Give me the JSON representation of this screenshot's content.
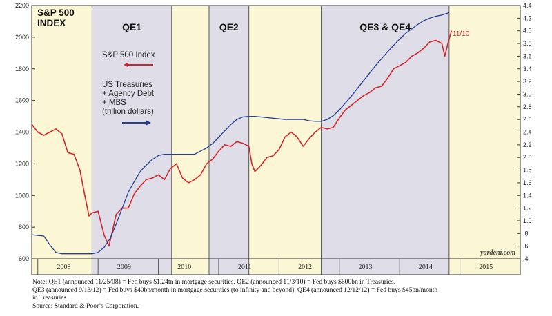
{
  "chart_data": {
    "type": "line",
    "title": "S&P 500\nINDEX",
    "periods": [
      {
        "name": "",
        "start": 2007.9,
        "end": 2008.9,
        "color": "#fbf7d4"
      },
      {
        "name": "QE1",
        "start": 2008.9,
        "end": 2010.22,
        "color": "#dfdee8"
      },
      {
        "name": "",
        "start": 2010.22,
        "end": 2010.84,
        "color": "#fbf7d4"
      },
      {
        "name": "QE2",
        "start": 2010.84,
        "end": 2011.5,
        "color": "#dfdee8"
      },
      {
        "name": "",
        "start": 2011.5,
        "end": 2012.7,
        "color": "#fbf7d4"
      },
      {
        "name": "QE3 & QE4",
        "start": 2012.7,
        "end": 2014.82,
        "color": "#dfdee8"
      },
      {
        "name": "",
        "start": 2014.82,
        "end": 2016.0,
        "color": "#fbf7d4"
      }
    ],
    "x_years": [
      "2008",
      "2009",
      "2010",
      "2011",
      "2012",
      "2013",
      "2014",
      "2015"
    ],
    "xlim": [
      2007.9,
      2016.0
    ],
    "ylim_left": [
      600,
      2200
    ],
    "yticks_left": [
      "600",
      "800",
      "1000",
      "1200",
      "1400",
      "1600",
      "1800",
      "2000",
      "2200"
    ],
    "ylim_right": [
      0.4,
      4.4
    ],
    "yticks_right": [
      ".4",
      ".6",
      ".8",
      "1.0",
      "1.2",
      "1.4",
      "1.6",
      "1.8",
      "2.0",
      "2.2",
      "2.4",
      "2.6",
      "2.8",
      "3.0",
      "3.2",
      "3.4",
      "3.6",
      "3.8",
      "4.0",
      "4.2",
      "4.4"
    ],
    "series": [
      {
        "name": "S&P 500 Index",
        "axis": "left",
        "color": "#d0262b",
        "x": [
          2007.9,
          2008.0,
          2008.1,
          2008.2,
          2008.3,
          2008.4,
          2008.5,
          2008.6,
          2008.7,
          2008.78,
          2008.85,
          2008.9,
          2009.0,
          2009.1,
          2009.18,
          2009.3,
          2009.4,
          2009.5,
          2009.6,
          2009.7,
          2009.8,
          2009.9,
          2010.0,
          2010.1,
          2010.2,
          2010.3,
          2010.4,
          2010.5,
          2010.6,
          2010.7,
          2010.8,
          2010.9,
          2011.0,
          2011.1,
          2011.2,
          2011.3,
          2011.4,
          2011.5,
          2011.55,
          2011.6,
          2011.7,
          2011.8,
          2011.9,
          2012.0,
          2012.1,
          2012.2,
          2012.3,
          2012.4,
          2012.5,
          2012.6,
          2012.7,
          2012.8,
          2012.9,
          2013.0,
          2013.1,
          2013.2,
          2013.3,
          2013.4,
          2013.5,
          2013.6,
          2013.7,
          2013.8,
          2013.9,
          2014.0,
          2014.1,
          2014.2,
          2014.3,
          2014.4,
          2014.5,
          2014.6,
          2014.7,
          2014.75,
          2014.8,
          2014.86
        ],
        "values": [
          1450,
          1400,
          1380,
          1400,
          1420,
          1390,
          1270,
          1260,
          1160,
          1000,
          870,
          890,
          900,
          750,
          680,
          880,
          920,
          920,
          1010,
          1060,
          1100,
          1110,
          1130,
          1100,
          1170,
          1200,
          1110,
          1080,
          1100,
          1130,
          1200,
          1230,
          1280,
          1320,
          1310,
          1340,
          1330,
          1310,
          1200,
          1150,
          1190,
          1240,
          1250,
          1290,
          1370,
          1400,
          1370,
          1310,
          1360,
          1400,
          1430,
          1420,
          1430,
          1490,
          1540,
          1570,
          1600,
          1630,
          1650,
          1680,
          1690,
          1740,
          1800,
          1820,
          1840,
          1880,
          1900,
          1930,
          1970,
          1980,
          1960,
          1880,
          1960,
          2040
        ]
      },
      {
        "name": "US Treasuries + Agency Debt + MBS (trillion dollars)",
        "axis": "right",
        "color": "#243f8f",
        "x": [
          2007.9,
          2008.0,
          2008.1,
          2008.2,
          2008.3,
          2008.4,
          2008.5,
          2008.6,
          2008.7,
          2008.8,
          2008.9,
          2009.0,
          2009.1,
          2009.2,
          2009.3,
          2009.4,
          2009.5,
          2009.6,
          2009.7,
          2009.8,
          2009.9,
          2010.0,
          2010.1,
          2010.2,
          2010.3,
          2010.4,
          2010.5,
          2010.6,
          2010.7,
          2010.8,
          2010.9,
          2011.0,
          2011.1,
          2011.2,
          2011.3,
          2011.4,
          2011.5,
          2011.6,
          2011.7,
          2011.8,
          2011.9,
          2012.0,
          2012.1,
          2012.2,
          2012.3,
          2012.4,
          2012.5,
          2012.6,
          2012.7,
          2012.8,
          2012.9,
          2013.0,
          2013.1,
          2013.2,
          2013.3,
          2013.4,
          2013.5,
          2013.6,
          2013.7,
          2013.8,
          2013.9,
          2014.0,
          2014.1,
          2014.2,
          2014.3,
          2014.4,
          2014.5,
          2014.6,
          2014.7,
          2014.8,
          2014.82
        ],
        "values": [
          0.78,
          0.77,
          0.76,
          0.62,
          0.5,
          0.48,
          0.48,
          0.48,
          0.48,
          0.48,
          0.48,
          0.5,
          0.58,
          0.72,
          0.95,
          1.2,
          1.45,
          1.62,
          1.78,
          1.88,
          1.97,
          2.03,
          2.05,
          2.05,
          2.05,
          2.05,
          2.05,
          2.05,
          2.1,
          2.15,
          2.22,
          2.32,
          2.42,
          2.52,
          2.6,
          2.64,
          2.65,
          2.65,
          2.64,
          2.63,
          2.62,
          2.61,
          2.6,
          2.6,
          2.6,
          2.6,
          2.58,
          2.57,
          2.57,
          2.6,
          2.66,
          2.75,
          2.86,
          2.97,
          3.09,
          3.21,
          3.33,
          3.45,
          3.56,
          3.67,
          3.77,
          3.87,
          3.96,
          4.03,
          4.1,
          4.16,
          4.2,
          4.23,
          4.25,
          4.28,
          4.29
        ]
      }
    ],
    "legend": {
      "sp500": "S&P 500 Index",
      "fed_lines": [
        "US Treasuries",
        "+ Agency Debt",
        "+ MBS",
        "(trillion dollars)"
      ]
    },
    "end_label": "11/10",
    "credit": "yardeni.com",
    "colors": {
      "yellow_band": "#fbf7d4",
      "gray_band": "#dfdee8",
      "sp500": "#d0262b",
      "fed": "#243f8f"
    }
  },
  "notes": [
    "Note: QE1 (announced 11/25/08) = Fed buys $1.24tn in mortgage securities. QE2 (announced 11/3/10) = Fed buys $600bn in Treasuries.",
    "QE3 (announced 9/13/12) = Fed buys $40bn/month in mortgage securities (to infinity and beyond). QE4 (announced 12/12/12) = Fed buys $45bn/month",
    "in Treasuries.",
    "Source: Standard & Poor’s Corporation."
  ]
}
